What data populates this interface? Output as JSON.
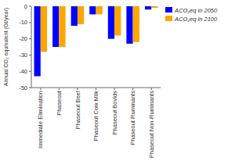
{
  "chart_data": {
    "type": "bar",
    "ylabel": "Annual CO₂ equivalent (Gt/year)",
    "categories": [
      "Immediate Elimination",
      "Phaseout",
      "Phaseout Beef",
      "Phaseout Cow Milk",
      "Phaseout Bovids",
      "Phaseout Ruminants",
      "Phaseout Non-Ruminants"
    ],
    "series": [
      {
        "name": "ACO₂eq in 2050",
        "color": "#0000ff",
        "values": [
          -43,
          -25,
          -12,
          -5,
          -20,
          -23,
          -2
        ]
      },
      {
        "name": "ACO₂eq in 2100",
        "color": "#ffa500",
        "values": [
          -28,
          -25,
          -11,
          -5,
          -18,
          -22,
          -1
        ]
      }
    ],
    "ylim": [
      -50,
      0
    ],
    "yticks": [
      0,
      -10,
      -20,
      -30,
      -40,
      -50
    ],
    "legend": "upper right",
    "grid": false
  }
}
